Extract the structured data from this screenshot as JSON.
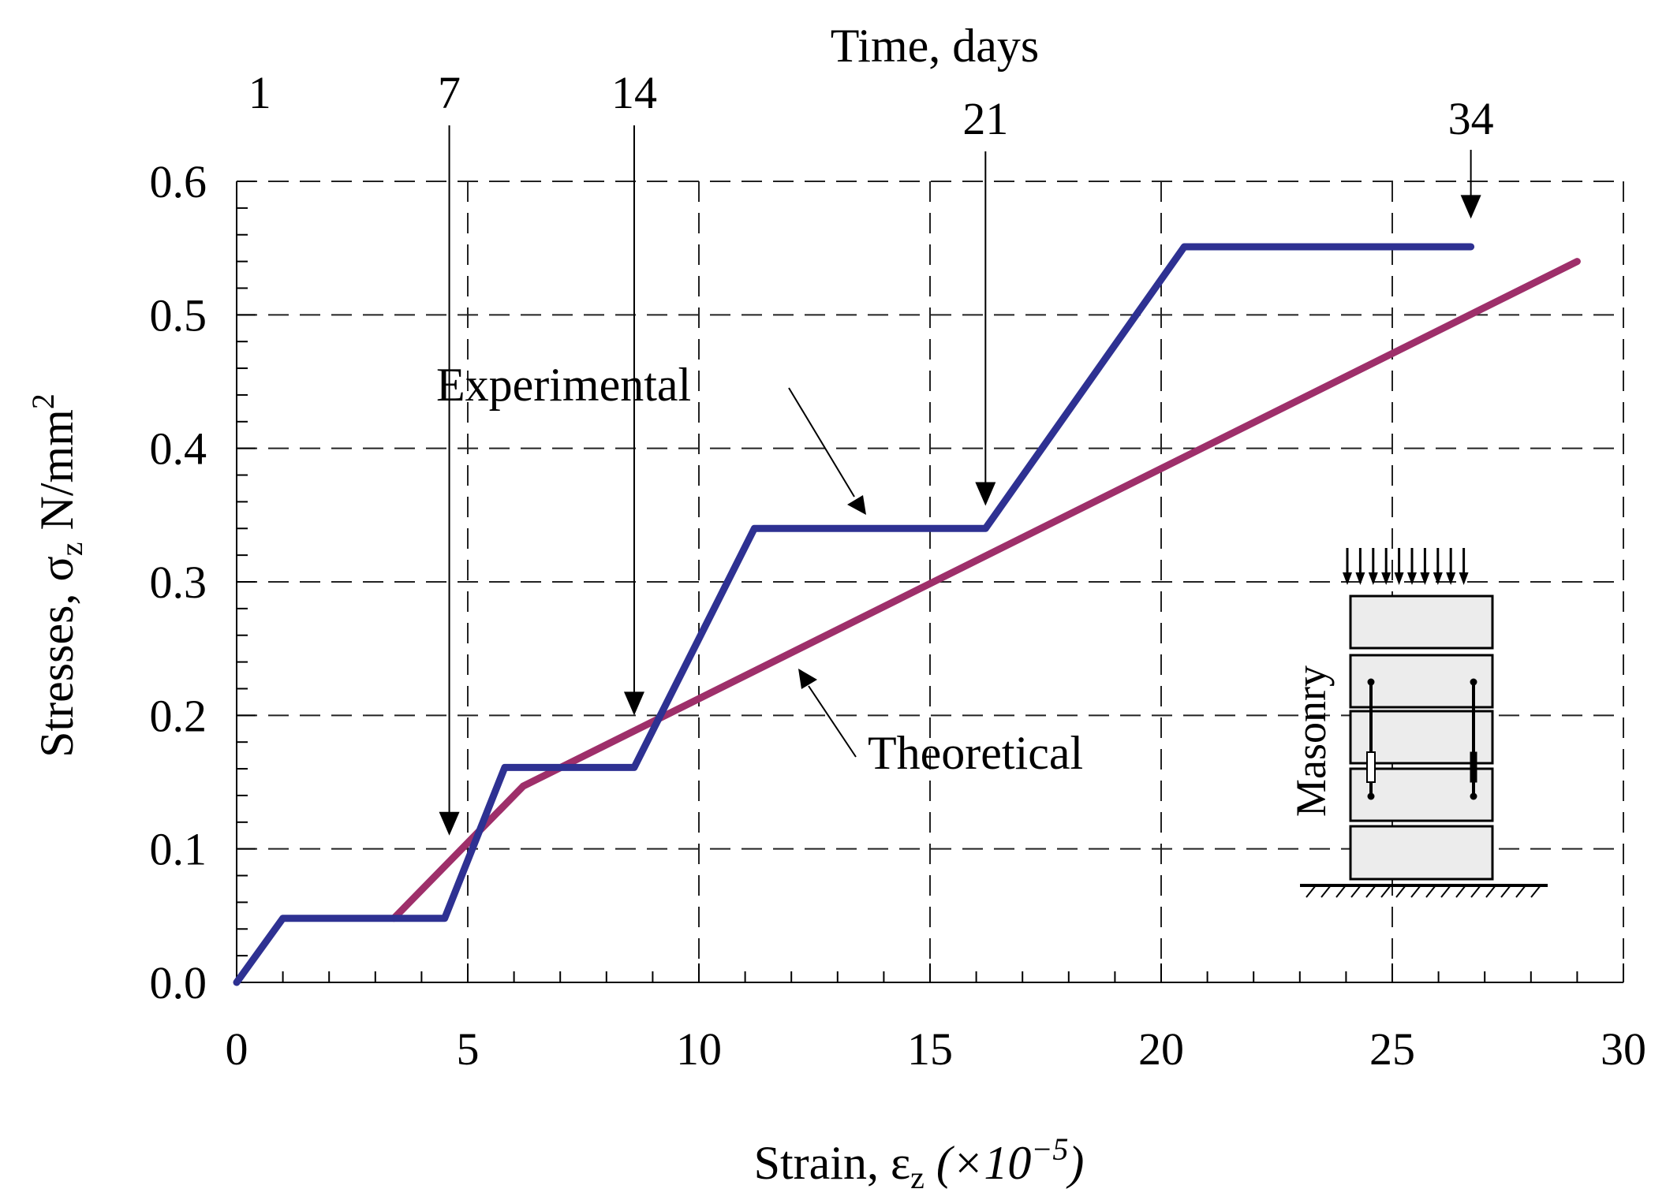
{
  "chart_data": {
    "type": "line",
    "xlabel_prefix": "Strain, ",
    "xlabel_symbol": "ε",
    "xlabel_sub": "z",
    "xlabel_scale_pre": " (×10",
    "xlabel_scale_exp": "−5",
    "xlabel_scale_post": ")",
    "ylabel_prefix": "Stresses, ",
    "ylabel_symbol": "σ",
    "ylabel_sub": "z",
    "ylabel_unit": " N/mm",
    "ylabel_unit_exp": "2",
    "top_axis_title": "Time, days",
    "xlim": [
      0,
      30
    ],
    "ylim": [
      0,
      0.6
    ],
    "x_ticks": [
      0,
      5,
      10,
      15,
      20,
      25,
      30
    ],
    "x_tick_labels": [
      "0",
      "5",
      "10",
      "15",
      "20",
      "25",
      "30"
    ],
    "y_ticks": [
      0,
      0.1,
      0.2,
      0.3,
      0.4,
      0.5,
      0.6
    ],
    "y_tick_labels": [
      "0.0",
      "0.1",
      "0.2",
      "0.3",
      "0.4",
      "0.5",
      "0.6"
    ],
    "grid": true,
    "series": [
      {
        "name": "Experimental",
        "color": "#2e3192",
        "x": [
          0,
          1.0,
          3.3,
          4.5,
          5.8,
          8.6,
          11.2,
          13.5,
          16.2,
          20.5,
          26.7
        ],
        "y": [
          0,
          0.048,
          0.048,
          0.048,
          0.161,
          0.161,
          0.34,
          0.34,
          0.34,
          0.551,
          0.551
        ]
      },
      {
        "name": "Theoretical",
        "color": "#9e2f6a",
        "x": [
          3.4,
          6.2,
          29.0
        ],
        "y": [
          0.048,
          0.147,
          0.54
        ]
      }
    ],
    "day_markers": [
      {
        "label": "1",
        "strain": 0.5,
        "arrow": false
      },
      {
        "label": "7",
        "strain": 4.6,
        "arrow": true,
        "arrow_stress": 0.11
      },
      {
        "label": "14",
        "strain": 8.6,
        "arrow": true,
        "arrow_stress": 0.2
      },
      {
        "label": "21",
        "strain": 16.2,
        "arrow": true,
        "arrow_stress": 0.357
      },
      {
        "label": "34",
        "strain": 26.7,
        "arrow": true,
        "arrow_stress": 0.572
      }
    ],
    "annotations": [
      {
        "text": "Experimental",
        "series": "Experimental"
      },
      {
        "text": "Theoretical",
        "series": "Theoretical"
      }
    ],
    "inset": {
      "label": "Masonry"
    }
  }
}
